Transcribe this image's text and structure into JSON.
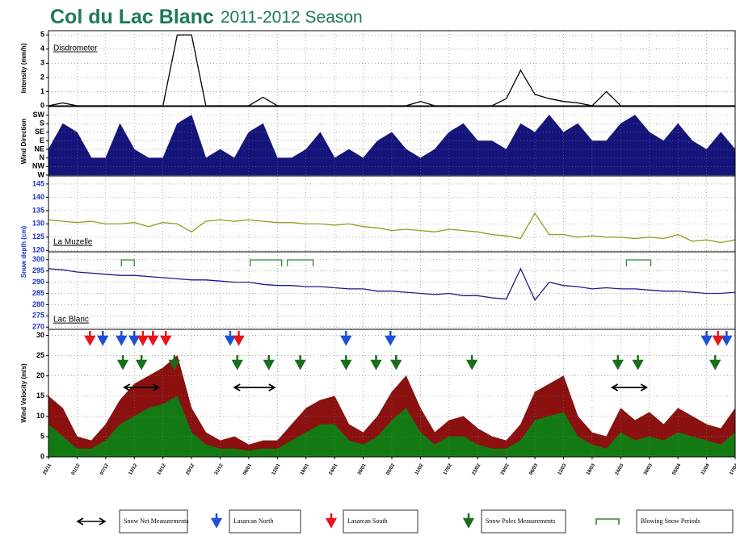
{
  "page_title": {
    "main": "Col du Lac Blanc",
    "season": "2011-2012 Season"
  },
  "chart_data": [
    {
      "type": "line",
      "panel_label": "Disdrometer",
      "y_label": "Intensity (mm/h)",
      "color": "#000000",
      "xlim": [
        0,
        48
      ],
      "x": [
        0,
        1,
        2,
        3,
        4,
        5,
        6,
        7,
        8,
        9,
        10,
        11,
        12,
        13,
        14,
        15,
        16,
        17,
        18,
        19,
        20,
        21,
        22,
        23,
        24,
        25,
        26,
        27,
        28,
        29,
        30,
        31,
        32,
        33,
        34,
        35,
        36,
        37,
        38,
        39,
        40,
        41,
        42,
        43,
        44,
        45,
        46,
        47,
        48
      ],
      "values": [
        0,
        0.2,
        0,
        0,
        0,
        0,
        0,
        0,
        0,
        5,
        5,
        0,
        0,
        0,
        0,
        0.6,
        0,
        0,
        0,
        0,
        0,
        0,
        0,
        0,
        0,
        0,
        0.3,
        0,
        0,
        0,
        0,
        0,
        0.5,
        2.5,
        0.8,
        0.5,
        0.3,
        0.2,
        0,
        1,
        0,
        0,
        0,
        0,
        0,
        0,
        0,
        0,
        0
      ],
      "ylim": [
        0,
        5.3
      ],
      "yticks": [
        0,
        1,
        2,
        3,
        4,
        5
      ]
    },
    {
      "type": "area",
      "y_label": "Wind Direction",
      "color": "#14147a",
      "xlim": [
        0,
        48
      ],
      "x": [
        0,
        1,
        2,
        3,
        4,
        5,
        6,
        7,
        8,
        9,
        10,
        11,
        12,
        13,
        14,
        15,
        16,
        17,
        18,
        19,
        20,
        21,
        22,
        23,
        24,
        25,
        26,
        27,
        28,
        29,
        30,
        31,
        32,
        33,
        34,
        35,
        36,
        37,
        38,
        39,
        40,
        41,
        42,
        43,
        44,
        45,
        46,
        47,
        48
      ],
      "values": [
        3,
        6,
        5,
        2,
        2,
        6,
        3,
        2,
        2,
        6,
        7,
        2,
        3,
        2,
        5,
        6,
        2,
        2,
        3,
        5,
        2,
        3,
        2,
        4,
        5,
        3,
        2,
        3,
        5,
        6,
        4,
        4,
        3,
        6,
        5,
        7,
        5,
        6,
        4,
        4,
        6,
        7,
        5,
        4,
        6,
        4,
        3,
        5,
        3
      ],
      "ylim": [
        -0.1,
        8
      ],
      "yticks": [
        {
          "value": 0,
          "label": "W"
        },
        {
          "value": 1,
          "label": "NW"
        },
        {
          "value": 2,
          "label": "N"
        },
        {
          "value": 3,
          "label": "NE"
        },
        {
          "value": 4,
          "label": "E"
        },
        {
          "value": 5,
          "label": "SE"
        },
        {
          "value": 6,
          "label": "S"
        },
        {
          "value": 7,
          "label": "SW"
        }
      ]
    },
    {
      "type": "line",
      "panel_label": "La Muzelle",
      "y_label": "Snow depth (cm)",
      "color": "#9a9a1e",
      "xlim": [
        0,
        48
      ],
      "x": [
        0,
        1,
        2,
        3,
        4,
        5,
        6,
        7,
        8,
        9,
        10,
        11,
        12,
        13,
        14,
        15,
        16,
        17,
        18,
        19,
        20,
        21,
        22,
        23,
        24,
        25,
        26,
        27,
        28,
        29,
        30,
        31,
        32,
        33,
        34,
        35,
        36,
        37,
        38,
        39,
        40,
        41,
        42,
        43,
        44,
        45,
        46,
        47,
        48
      ],
      "values": [
        131.5,
        131,
        130.5,
        131,
        130,
        130,
        130.5,
        129,
        130.5,
        130,
        127,
        131,
        131.5,
        131,
        131.5,
        131,
        130.5,
        130.5,
        130,
        130,
        129.5,
        130,
        129,
        128.5,
        127.5,
        128,
        127.5,
        127,
        128,
        127.5,
        127,
        126,
        125.5,
        124.5,
        134,
        126,
        126,
        125,
        125.5,
        125,
        125,
        124.5,
        125,
        124.5,
        126,
        123.5,
        124,
        123,
        124
      ],
      "ylim": [
        119.5,
        148
      ],
      "yticks": [
        120,
        125,
        130,
        135,
        140,
        145
      ]
    },
    {
      "type": "line",
      "panel_label": "Lac Blanc",
      "color": "#1a1a8c",
      "xlim": [
        0,
        48
      ],
      "x": [
        0,
        1,
        2,
        3,
        4,
        5,
        6,
        7,
        8,
        9,
        10,
        11,
        12,
        13,
        14,
        15,
        16,
        17,
        18,
        19,
        20,
        21,
        22,
        23,
        24,
        25,
        26,
        27,
        28,
        29,
        30,
        31,
        32,
        33,
        34,
        35,
        36,
        37,
        38,
        39,
        40,
        41,
        42,
        43,
        44,
        45,
        46,
        47,
        48
      ],
      "values": [
        296,
        295.5,
        294.5,
        294,
        293.5,
        293,
        293,
        292.5,
        292,
        291.5,
        291,
        291,
        290.5,
        290,
        290,
        289,
        288.5,
        288.5,
        288,
        288,
        287.5,
        287,
        287,
        286,
        286,
        285.5,
        285,
        284.5,
        285,
        284,
        284,
        283,
        282.5,
        296,
        282,
        290,
        288.5,
        288,
        287,
        287.5,
        287,
        287,
        286.5,
        286,
        286,
        285.5,
        285,
        285,
        285.5
      ],
      "ylim": [
        269,
        303.5
      ],
      "yticks": [
        270,
        275,
        280,
        285,
        290,
        295,
        300
      ],
      "blowing_snow": {
        "name": "Blowing Snow Periods",
        "color": "#2e8b2e",
        "ranges": [
          [
            5.1,
            6.0
          ],
          [
            14.1,
            16.3
          ],
          [
            16.7,
            18.5
          ],
          [
            40.4,
            42.1
          ]
        ]
      }
    },
    {
      "type": "area",
      "y_label": "Wind Velocity (m/s)",
      "xlim": [
        0,
        48
      ],
      "x": [
        0,
        1,
        2,
        3,
        4,
        5,
        6,
        7,
        8,
        9,
        10,
        11,
        12,
        13,
        14,
        15,
        16,
        17,
        18,
        19,
        20,
        21,
        22,
        23,
        24,
        25,
        26,
        27,
        28,
        29,
        30,
        31,
        32,
        33,
        34,
        35,
        36,
        37,
        38,
        39,
        40,
        41,
        42,
        43,
        44,
        45,
        46,
        47,
        48
      ],
      "series": [
        {
          "color": "#8b1010",
          "values": [
            15,
            12,
            5,
            4,
            8,
            14,
            18,
            20,
            22,
            25,
            12,
            6,
            4,
            5,
            3,
            4,
            4,
            8,
            12,
            14,
            15,
            8,
            6,
            10,
            16,
            20,
            12,
            6,
            9,
            10,
            7,
            5,
            4,
            8,
            16,
            18,
            20,
            10,
            6,
            5,
            12,
            9,
            11,
            8,
            12,
            10,
            8,
            7,
            12
          ]
        },
        {
          "color": "#137a13",
          "values": [
            8,
            5,
            2,
            2,
            4,
            8,
            10,
            12,
            13,
            15,
            6,
            3,
            2,
            2,
            1.5,
            2,
            2,
            4,
            6,
            8,
            8,
            4,
            3,
            5,
            9,
            12,
            6,
            3,
            5,
            5,
            3,
            2,
            2,
            4,
            9,
            10,
            11,
            5,
            3,
            2,
            6,
            4,
            5,
            4,
            6,
            5,
            4,
            3,
            6
          ]
        }
      ],
      "ylim": [
        0,
        31.5
      ],
      "yticks": [
        0,
        5,
        10,
        15,
        20,
        25,
        30
      ],
      "xticks": [
        {
          "value": 0,
          "label": "25/11"
        },
        {
          "value": 2,
          "label": "01/12"
        },
        {
          "value": 4,
          "label": "07/12"
        },
        {
          "value": 6,
          "label": "13/12"
        },
        {
          "value": 8,
          "label": "19/12"
        },
        {
          "value": 10,
          "label": "25/12"
        },
        {
          "value": 12,
          "label": "31/12"
        },
        {
          "value": 14,
          "label": "06/01"
        },
        {
          "value": 16,
          "label": "12/01"
        },
        {
          "value": 18,
          "label": "18/01"
        },
        {
          "value": 20,
          "label": "24/01"
        },
        {
          "value": 22,
          "label": "30/01"
        },
        {
          "value": 24,
          "label": "05/02"
        },
        {
          "value": 26,
          "label": "11/02"
        },
        {
          "value": 28,
          "label": "17/02"
        },
        {
          "value": 30,
          "label": "23/02"
        },
        {
          "value": 32,
          "label": "29/02"
        },
        {
          "value": 34,
          "label": "06/03"
        },
        {
          "value": 36,
          "label": "12/03"
        },
        {
          "value": 38,
          "label": "18/03"
        },
        {
          "value": 40,
          "label": "24/03"
        },
        {
          "value": 42,
          "label": "30/03"
        },
        {
          "value": 44,
          "label": "05/04"
        },
        {
          "value": 46,
          "label": "11/04"
        },
        {
          "value": 48,
          "label": "17/04"
        }
      ],
      "annotations": {
        "snow_net": {
          "name": "Snow Net Measurements",
          "color": "#000000",
          "ranges": [
            [
              5.3,
              7.7
            ],
            [
              13.0,
              15.8
            ],
            [
              39.4,
              41.8
            ]
          ]
        },
        "lasarcan_north": {
          "name": "Lasarcan North",
          "color": "#1f4fd8",
          "x": [
            3.8,
            5.1,
            6.0,
            12.7,
            20.8,
            23.9,
            46.0,
            47.4
          ]
        },
        "lasarcan_south": {
          "name": "Lasarcan South",
          "color": "#e8141a",
          "x": [
            2.9,
            6.6,
            7.3,
            8.2,
            13.3,
            46.8
          ]
        },
        "snow_poles": {
          "name": "Snow Poles Measurements",
          "color": "#1a6e1a",
          "x": [
            5.2,
            6.5,
            8.8,
            13.2,
            15.4,
            17.6,
            20.8,
            22.9,
            24.3,
            29.6,
            39.8,
            41.2,
            46.6
          ]
        }
      }
    }
  ]
}
